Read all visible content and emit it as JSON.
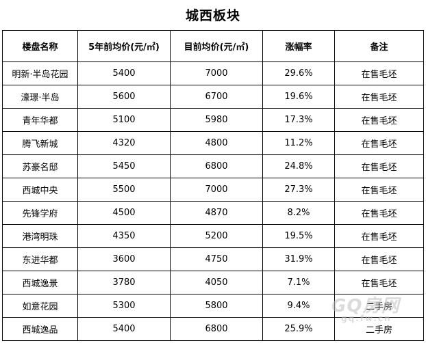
{
  "title": "城西板块",
  "headers": [
    "楼盘名称",
    "5年前均价(元/㎡)",
    "目前均价(元/㎡)",
    "涨幅率",
    "备注"
  ],
  "rows": [
    {
      "name": "明新·半岛花园",
      "price_5y": "5400",
      "price_now": "7000",
      "growth": "29.6%",
      "note": "在售毛坯"
    },
    {
      "name": "濠璟·半岛",
      "price_5y": "5600",
      "price_now": "6700",
      "growth": "19.6%",
      "note": "在售毛坯"
    },
    {
      "name": "青年华都",
      "price_5y": "5100",
      "price_now": "5980",
      "growth": "17.3%",
      "note": "在售毛坯"
    },
    {
      "name": "腾飞新城",
      "price_5y": "4320",
      "price_now": "4800",
      "growth": "11.2%",
      "note": "在售毛坯"
    },
    {
      "name": "苏豪名邸",
      "price_5y": "5450",
      "price_now": "6800",
      "growth": "24.8%",
      "note": "在售毛坯"
    },
    {
      "name": "西城中央",
      "price_5y": "5500",
      "price_now": "7000",
      "growth": "27.3%",
      "note": "在售毛坯"
    },
    {
      "name": "先锋学府",
      "price_5y": "4500",
      "price_now": "4870",
      "growth": "8.2%",
      "note": "在售毛坯"
    },
    {
      "name": "港湾明珠",
      "price_5y": "4350",
      "price_now": "5200",
      "growth": "19.5%",
      "note": "在售毛坯"
    },
    {
      "name": "东进华都",
      "price_5y": "3600",
      "price_now": "4750",
      "growth": "31.9%",
      "note": "在售毛坯"
    },
    {
      "name": "西城逸景",
      "price_5y": "3780",
      "price_now": "4050",
      "growth": "7.1%",
      "note": "在售毛坯"
    },
    {
      "name": "如意花园",
      "price_5y": "5300",
      "price_now": "5800",
      "growth": "9.4%",
      "note": "二手房"
    },
    {
      "name": "西城逸品",
      "price_5y": "5400",
      "price_now": "6800",
      "growth": "25.9%",
      "note": "二手房"
    }
  ],
  "watermark": {
    "main": "GQ房网",
    "sub": "gq.fw.cn"
  }
}
